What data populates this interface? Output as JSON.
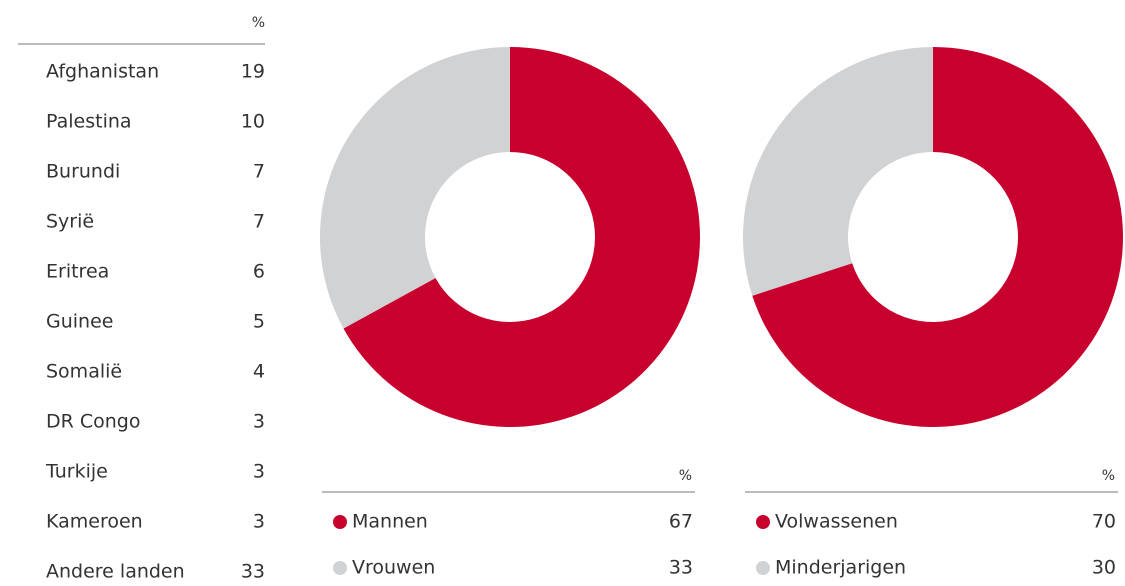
{
  "table": {
    "unit": "%",
    "rows": [
      [
        "Afghanistan",
        19
      ],
      [
        "Palestina",
        10
      ],
      [
        "Burundi",
        7
      ],
      [
        "Syrië",
        7
      ],
      [
        "Eritrea",
        6
      ],
      [
        "Guinee",
        5
      ],
      [
        "Somalië",
        4
      ],
      [
        "DR Congo",
        3
      ],
      [
        "Turkije",
        3
      ],
      [
        "Kameroen",
        3
      ],
      [
        "Andere landen",
        33
      ]
    ]
  },
  "chart_data": [
    {
      "type": "donut",
      "unit": "%",
      "categories": [
        "Mannen",
        "Vrouwen"
      ],
      "values": [
        67,
        33
      ],
      "colors": [
        "#c8002d",
        "#d1d2d4"
      ]
    },
    {
      "type": "donut",
      "unit": "%",
      "categories": [
        "Volwassenen",
        "Minderjarigen"
      ],
      "values": [
        70,
        30
      ],
      "colors": [
        "#c8002d",
        "#d1d2d4"
      ]
    }
  ]
}
